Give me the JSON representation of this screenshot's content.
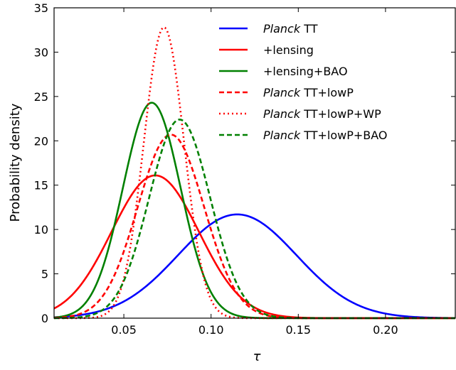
{
  "chart_data": {
    "type": "line",
    "xlabel": "τ",
    "ylabel": "Probability density",
    "xlim": [
      0.01,
      0.24
    ],
    "ylim": [
      0,
      35
    ],
    "x_ticks": [
      0.05,
      0.1,
      0.15,
      0.2
    ],
    "x_tick_labels": [
      "0.05",
      "0.10",
      "0.15",
      "0.20"
    ],
    "y_ticks": [
      0,
      5,
      10,
      15,
      20,
      25,
      30,
      35
    ],
    "y_tick_labels": [
      "0",
      "5",
      "10",
      "15",
      "20",
      "25",
      "30",
      "35"
    ],
    "grid": false,
    "legend_position": "top-right",
    "series": [
      {
        "name_italic": "Planck",
        "name_rest": " TT",
        "color": "#0000ff",
        "style": "solid",
        "shape": "gaussian",
        "peak_x": 0.115,
        "peak_y": 11.7,
        "sigma": 0.034
      },
      {
        "name_italic": "",
        "name_rest": "+lensing",
        "color": "#ff0000",
        "style": "solid",
        "shape": "gaussian",
        "peak_x": 0.068,
        "peak_y": 16.1,
        "sigma": 0.025
      },
      {
        "name_italic": "",
        "name_rest": "+lensing+BAO",
        "color": "#008000",
        "style": "solid",
        "shape": "gaussian",
        "peak_x": 0.066,
        "peak_y": 24.3,
        "sigma": 0.0165
      },
      {
        "name_italic": "Planck",
        "name_rest": " TT+lowP",
        "color": "#ff0000",
        "style": "dashed",
        "shape": "gaussian",
        "peak_x": 0.077,
        "peak_y": 20.7,
        "sigma": 0.019
      },
      {
        "name_italic": "Planck",
        "name_rest": " TT+lowP+WP",
        "color": "#ff0000",
        "style": "dotted",
        "shape": "gaussian",
        "peak_x": 0.073,
        "peak_y": 32.8,
        "sigma": 0.0115
      },
      {
        "name_italic": "Planck",
        "name_rest": " TT+lowP+BAO",
        "color": "#008000",
        "style": "dashed",
        "shape": "gaussian",
        "peak_x": 0.082,
        "peak_y": 22.4,
        "sigma": 0.0175
      }
    ]
  }
}
